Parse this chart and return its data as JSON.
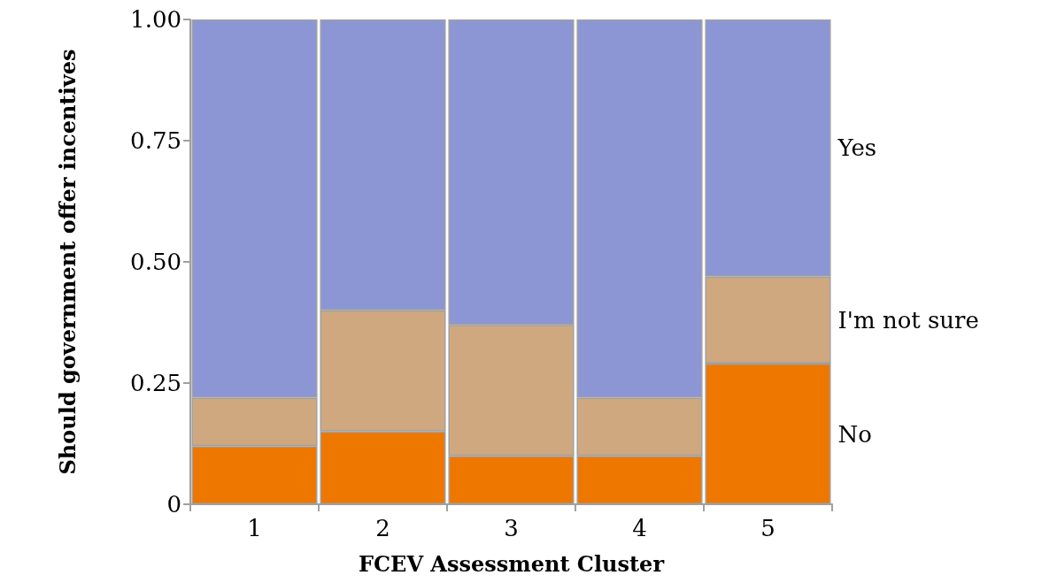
{
  "chart_data": {
    "type": "bar",
    "stacked": true,
    "xlabel": "FCEV Assessment Cluster",
    "ylabel": "Should government offer incentives",
    "categories": [
      "1",
      "2",
      "3",
      "4",
      "5"
    ],
    "series": [
      {
        "name": "No",
        "color": "#ee7700",
        "values": [
          0.12,
          0.15,
          0.1,
          0.1,
          0.29
        ]
      },
      {
        "name": "I'm not sure",
        "color": "#cfa880",
        "values": [
          0.1,
          0.25,
          0.27,
          0.12,
          0.18
        ]
      },
      {
        "name": "Yes",
        "color": "#8c96d4",
        "values": [
          0.78,
          0.6,
          0.63,
          0.78,
          0.53
        ]
      }
    ],
    "ylim": [
      0,
      1
    ],
    "yticks": [
      0,
      {
        "value": 0.25,
        "label": "0.25"
      },
      {
        "value": 0.5,
        "label": "0.50"
      },
      {
        "value": 0.75,
        "label": "0.75"
      },
      {
        "value": 1,
        "label": "1.00"
      }
    ],
    "grid": false,
    "legend": false
  }
}
